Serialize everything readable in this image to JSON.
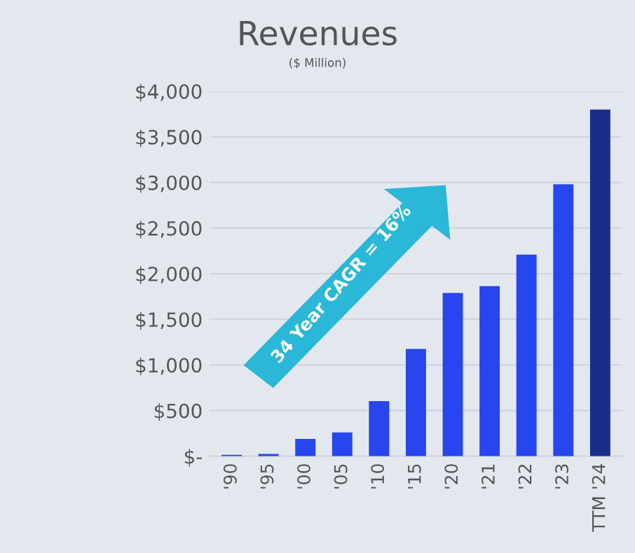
{
  "chart_data": {
    "type": "bar",
    "title": "Revenues",
    "subtitle": "($ Million)",
    "categories": [
      "'90",
      "'95",
      "'00",
      "'05",
      "'10",
      "'15",
      "'20",
      "'21",
      "'22",
      "'23",
      "TTM '24"
    ],
    "values": [
      15,
      25,
      190,
      260,
      605,
      1175,
      1790,
      1865,
      2210,
      2980,
      3800
    ],
    "colors": [
      "#2746f0",
      "#2746f0",
      "#2746f0",
      "#2746f0",
      "#2746f0",
      "#2746f0",
      "#2746f0",
      "#2746f0",
      "#2746f0",
      "#2746f0",
      "#1c2c8c"
    ],
    "ylim": [
      0,
      4000
    ],
    "yticks": [
      {
        "value": 0,
        "label": "$-"
      },
      {
        "value": 500,
        "label": "$500"
      },
      {
        "value": 1000,
        "label": "$1,000"
      },
      {
        "value": 1500,
        "label": "$1,500"
      },
      {
        "value": 2000,
        "label": "$2,000"
      },
      {
        "value": 2500,
        "label": "$2,500"
      },
      {
        "value": 3000,
        "label": "$3,000"
      },
      {
        "value": 3500,
        "label": "$3,500"
      },
      {
        "value": 4000,
        "label": "$4,000"
      }
    ],
    "grid": "y",
    "annotations": [
      "34 Year CAGR = 16%"
    ]
  }
}
